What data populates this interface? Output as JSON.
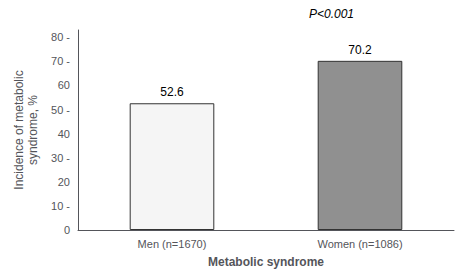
{
  "chart_data": {
    "type": "bar",
    "categories": [
      "Men (n=1670)",
      "Women (n=1086)"
    ],
    "values": [
      52.6,
      70.2
    ],
    "colors": [
      "#f5f5f5",
      "#909090"
    ],
    "xlabel": "Metabolic syndrome",
    "ylabel": "Incidence of metabolic\nsyndrome, %",
    "annotation": "P<0.001",
    "ylim": [
      0,
      83
    ],
    "yticks": [
      0,
      {
        "value": 10,
        "label": "10 -"
      },
      20,
      {
        "value": 30,
        "label": "30 -"
      },
      40,
      {
        "value": 50,
        "label": "50 -"
      },
      60,
      {
        "value": 70,
        "label": "70 -"
      },
      {
        "value": 80,
        "label": "80 -"
      }
    ],
    "data_labels": true,
    "grid": false
  }
}
